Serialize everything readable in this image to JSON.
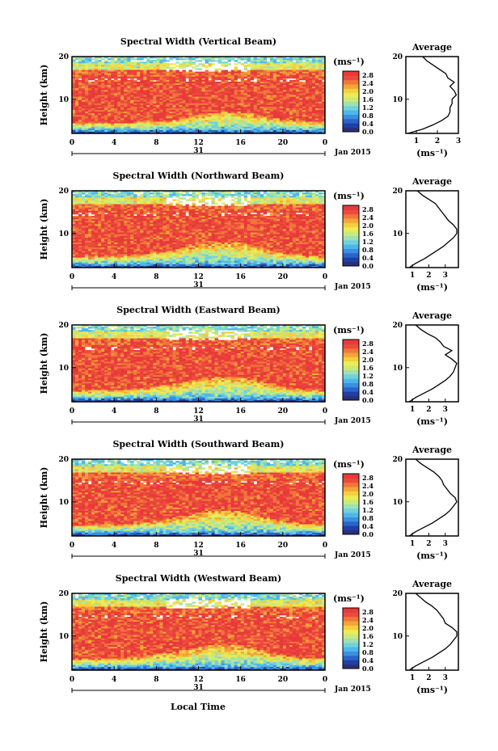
{
  "colors": {
    "scale": [
      "#2b2f7a",
      "#1f3fa6",
      "#2a64c9",
      "#3a8fe0",
      "#4fb6ea",
      "#6fd2dc",
      "#9fe0b4",
      "#c9ea7a",
      "#ecec55",
      "#f5cf3e",
      "#f4a43a",
      "#f0763a",
      "#ec4a3c",
      "#e8393b"
    ]
  },
  "common": {
    "height_label": "Height (km)",
    "unit_label": "(ms⁻¹)",
    "average_title": "Average",
    "date_day": "31",
    "date_suffix": "Jan 2015",
    "local_time_label": "Local Time",
    "x_ticks": [
      "0",
      "4",
      "8",
      "12",
      "16",
      "20",
      "0"
    ],
    "y_ticks": [
      "20",
      "10"
    ],
    "colorbar_ticks": [
      "2.8",
      "2.4",
      "2.0",
      "1.6",
      "1.2",
      "0.8",
      "0.4",
      "0.0"
    ]
  },
  "chart_data": [
    {
      "type": "heatmap",
      "title": "Spectral Width (Vertical Beam)",
      "ylabel": "Height (km)",
      "xlim": [
        0,
        24
      ],
      "ylim": [
        2,
        20
      ],
      "colorbar_range": [
        0,
        3.0
      ],
      "profile_title": "Average",
      "profile_xlabel": "(ms⁻¹)",
      "profile_xticks": [
        "1",
        "2",
        "3"
      ],
      "profile_xlim": [
        0.5,
        3.0
      ],
      "profile": {
        "height": [
          2,
          3,
          4,
          5,
          6,
          7,
          8,
          9,
          10,
          11,
          12,
          13,
          14,
          15,
          16,
          17,
          18,
          19,
          20
        ],
        "value": [
          0.6,
          1.3,
          1.8,
          2.2,
          2.5,
          2.6,
          2.6,
          2.7,
          2.7,
          2.9,
          2.8,
          2.6,
          2.8,
          2.5,
          2.4,
          2.1,
          1.8,
          1.5,
          1.3
        ]
      }
    },
    {
      "type": "heatmap",
      "title": "Spectral Width (Northward Beam)",
      "ylabel": "Height (km)",
      "xlim": [
        0,
        24
      ],
      "ylim": [
        2,
        20
      ],
      "colorbar_range": [
        0,
        3.0
      ],
      "profile_title": "Average",
      "profile_xlabel": "(ms⁻¹)",
      "profile_xticks": [
        "1",
        "2",
        "3"
      ],
      "profile_xlim": [
        0.6,
        3.8
      ],
      "profile": {
        "height": [
          2,
          3,
          4,
          5,
          6,
          7,
          8,
          9,
          10,
          11,
          12,
          13,
          14,
          15,
          16,
          17,
          18,
          19,
          20
        ],
        "value": [
          0.8,
          1.2,
          1.7,
          2.1,
          2.5,
          2.9,
          3.2,
          3.5,
          3.7,
          3.7,
          3.5,
          3.2,
          3.0,
          2.8,
          2.6,
          2.4,
          2.0,
          1.6,
          1.3
        ]
      }
    },
    {
      "type": "heatmap",
      "title": "Spectral Width (Eastward Beam)",
      "ylabel": "Height (km)",
      "xlim": [
        0,
        24
      ],
      "ylim": [
        2,
        20
      ],
      "colorbar_range": [
        0,
        3.0
      ],
      "profile_title": "Average",
      "profile_xlabel": "(ms⁻¹)",
      "profile_xticks": [
        "1",
        "2",
        "3"
      ],
      "profile_xlim": [
        0.6,
        3.8
      ],
      "profile": {
        "height": [
          2,
          3,
          4,
          5,
          6,
          7,
          8,
          9,
          10,
          11,
          12,
          13,
          14,
          15,
          16,
          17,
          18,
          19,
          20
        ],
        "value": [
          0.8,
          1.2,
          1.7,
          2.2,
          2.6,
          3.0,
          3.3,
          3.5,
          3.6,
          3.7,
          3.4,
          3.0,
          3.4,
          2.9,
          2.7,
          2.4,
          1.9,
          1.5,
          1.2
        ]
      }
    },
    {
      "type": "heatmap",
      "title": "Spectral Width (Southward Beam)",
      "ylabel": "Height (km)",
      "xlim": [
        0,
        24
      ],
      "ylim": [
        2,
        20
      ],
      "colorbar_range": [
        0,
        3.0
      ],
      "profile_title": "Average",
      "profile_xlabel": "(ms⁻¹)",
      "profile_xticks": [
        "1",
        "2",
        "3"
      ],
      "profile_xlim": [
        0.6,
        3.8
      ],
      "profile": {
        "height": [
          2,
          3,
          4,
          5,
          6,
          7,
          8,
          9,
          10,
          11,
          12,
          13,
          14,
          15,
          16,
          17,
          18,
          19,
          20
        ],
        "value": [
          0.8,
          1.2,
          1.7,
          2.2,
          2.6,
          3.0,
          3.3,
          3.5,
          3.7,
          3.6,
          3.3,
          3.1,
          2.9,
          2.8,
          2.6,
          2.3,
          1.9,
          1.5,
          1.2
        ]
      }
    },
    {
      "type": "heatmap",
      "title": "Spectral Width (Westward Beam)",
      "ylabel": "Height (km)",
      "xlim": [
        0,
        24
      ],
      "ylim": [
        2,
        20
      ],
      "colorbar_range": [
        0,
        3.0
      ],
      "profile_title": "Average",
      "profile_xlabel": "(ms⁻¹)",
      "profile_xticks": [
        "1",
        "2",
        "3"
      ],
      "profile_xlim": [
        0.6,
        3.8
      ],
      "profile": {
        "height": [
          2,
          3,
          4,
          5,
          6,
          7,
          8,
          9,
          10,
          11,
          12,
          13,
          14,
          15,
          16,
          17,
          18,
          19,
          20
        ],
        "value": [
          0.8,
          1.2,
          1.7,
          2.2,
          2.6,
          3.0,
          3.3,
          3.5,
          3.7,
          3.7,
          3.4,
          3.0,
          2.9,
          2.7,
          2.5,
          2.2,
          1.8,
          1.5,
          1.2
        ]
      }
    }
  ]
}
